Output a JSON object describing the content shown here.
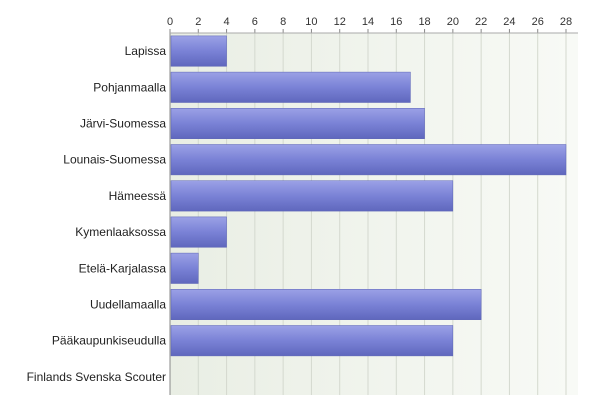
{
  "chart_data": {
    "type": "bar",
    "orientation": "horizontal",
    "categories": [
      "Lapissa",
      "Pohjanmaalla",
      "Järvi-Suomessa",
      "Lounais-Suomessa",
      "Hämeessä",
      "Kymenlaaksossa",
      "Etelä-Karjalassa",
      "Uudellamaalla",
      "Pääkaupunkiseudulla",
      "Finlands Svenska Scouter"
    ],
    "values": [
      4,
      17,
      18,
      28,
      20,
      4,
      2,
      22,
      20,
      0
    ],
    "xlim": [
      0,
      28
    ],
    "xticks": [
      0,
      2,
      4,
      6,
      8,
      10,
      12,
      14,
      16,
      18,
      20,
      22,
      24,
      26,
      28
    ],
    "x_axis_position": "top",
    "grid": true,
    "bar_color": "#7b83d4",
    "background_color": "#eef2ea"
  }
}
